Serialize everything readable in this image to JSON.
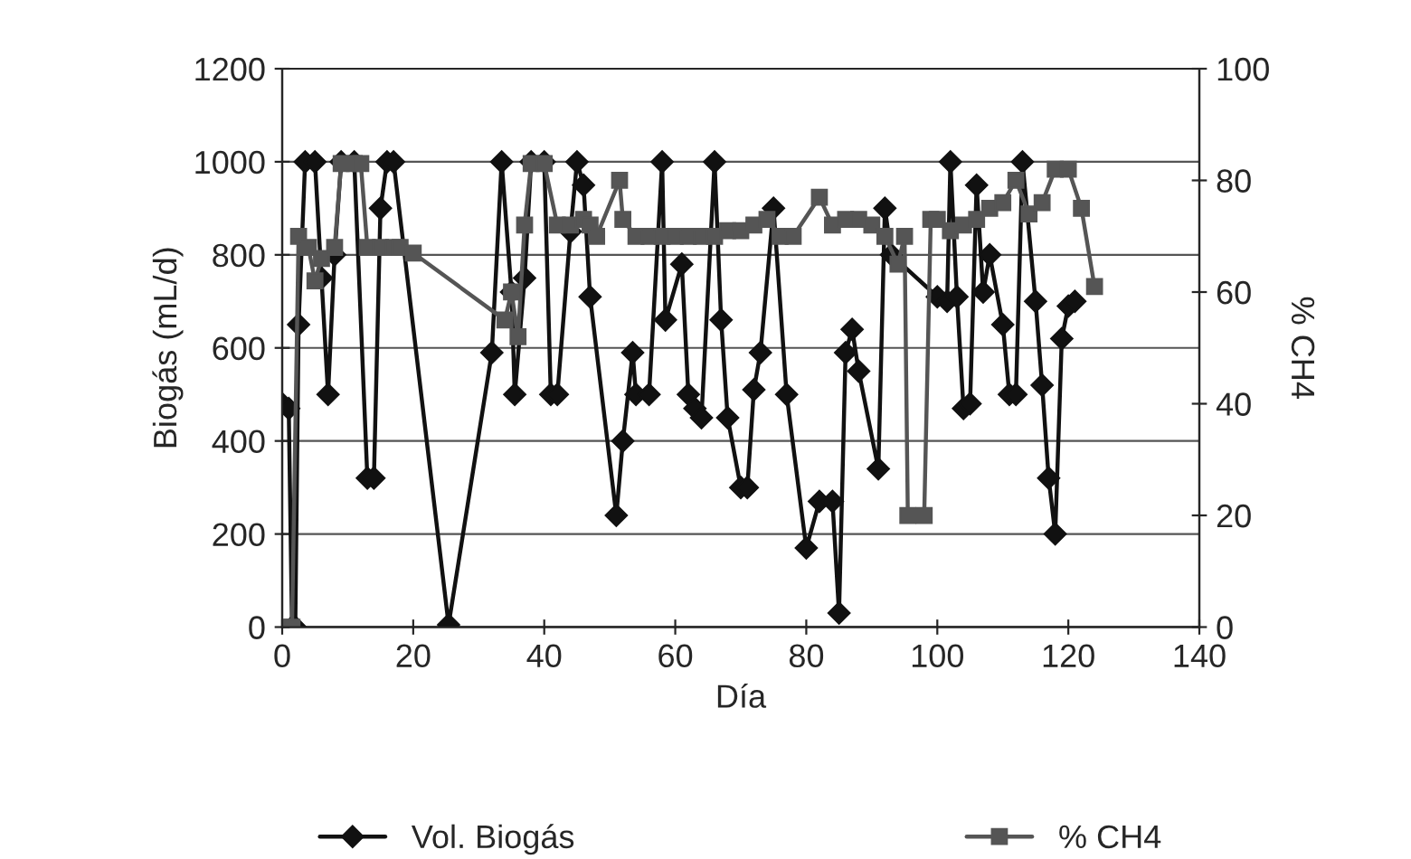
{
  "chart_data": {
    "type": "line",
    "xlabel": "Día",
    "ylabel": "Biogás (mL/d)",
    "y2label": "% CH4",
    "xlim": [
      0,
      140
    ],
    "xticks": [
      0,
      20,
      40,
      60,
      80,
      100,
      120,
      140
    ],
    "ylim": [
      0,
      1200
    ],
    "yticks": [
      0,
      200,
      400,
      600,
      800,
      1000,
      1200
    ],
    "y2lim": [
      0,
      100
    ],
    "y2ticks": [
      0,
      20,
      40,
      60,
      80,
      100
    ],
    "grid": "y",
    "legend": "bottom",
    "line_style": "solid",
    "series": [
      {
        "name": "Vol. Biogás",
        "color": "#111111",
        "marker": "diamond",
        "x": [
          0,
          1,
          1.5,
          2,
          2.5,
          3.5,
          5,
          6,
          7,
          8,
          9,
          11,
          13,
          14,
          15,
          16,
          17,
          25.4,
          32,
          33.5,
          35,
          35.5,
          37,
          38,
          40,
          41,
          42,
          44,
          45,
          46,
          47,
          51,
          52,
          53.5,
          54,
          56,
          58,
          58.5,
          61,
          62,
          63,
          64,
          66,
          67,
          68,
          70,
          71,
          72,
          73,
          75,
          77,
          80,
          82,
          84,
          85,
          86,
          87,
          88,
          91,
          92,
          93,
          100,
          101.5,
          102,
          103,
          104,
          105,
          106,
          107,
          108,
          110,
          111,
          112,
          113,
          115,
          116,
          117,
          118,
          119,
          120,
          121
        ],
        "values": [
          480,
          470,
          0,
          0,
          650,
          1000,
          1000,
          750,
          500,
          800,
          1000,
          1000,
          320,
          320,
          900,
          1000,
          1000,
          5,
          590,
          1000,
          720,
          500,
          750,
          1000,
          1000,
          500,
          500,
          850,
          1000,
          950,
          710,
          240,
          400,
          590,
          500,
          500,
          1000,
          660,
          780,
          500,
          470,
          450,
          1000,
          660,
          450,
          300,
          300,
          510,
          590,
          900,
          500,
          170,
          270,
          270,
          30,
          590,
          640,
          550,
          340,
          900,
          800,
          710,
          700,
          1000,
          710,
          470,
          480,
          950,
          720,
          800,
          650,
          500,
          500,
          1000,
          700,
          520,
          320,
          200,
          620,
          690,
          700
        ]
      },
      {
        "name": "% CH4",
        "color": "#555555",
        "marker": "square",
        "axis": "y2",
        "x": [
          0,
          1.5,
          2.5,
          4,
          5,
          6,
          8,
          9,
          11,
          12,
          13,
          15,
          17,
          18,
          20,
          34,
          35,
          36,
          37,
          38,
          40,
          42,
          44,
          46,
          47,
          48,
          51.5,
          52,
          54,
          56,
          58,
          60,
          62,
          64,
          66,
          68,
          70,
          72,
          74,
          76,
          78,
          82,
          84,
          86,
          88,
          90,
          92,
          94,
          95,
          95.5,
          98,
          99,
          100,
          102,
          104,
          106,
          108,
          110,
          112,
          114,
          116,
          118,
          120,
          122,
          124
        ],
        "values": [
          0,
          0,
          70,
          68,
          62,
          66,
          68,
          83,
          83,
          83,
          68,
          68,
          68,
          68,
          67,
          55,
          60,
          52,
          72,
          83,
          83,
          72,
          72,
          73,
          72,
          70,
          80,
          73,
          70,
          70,
          70,
          70,
          70,
          70,
          70,
          71,
          71,
          72,
          73,
          70,
          70,
          77,
          72,
          73,
          73,
          72,
          70,
          65,
          70,
          20,
          20,
          73,
          73,
          71,
          72,
          73,
          75,
          76,
          80,
          74,
          76,
          82,
          82,
          75,
          61
        ]
      }
    ]
  }
}
